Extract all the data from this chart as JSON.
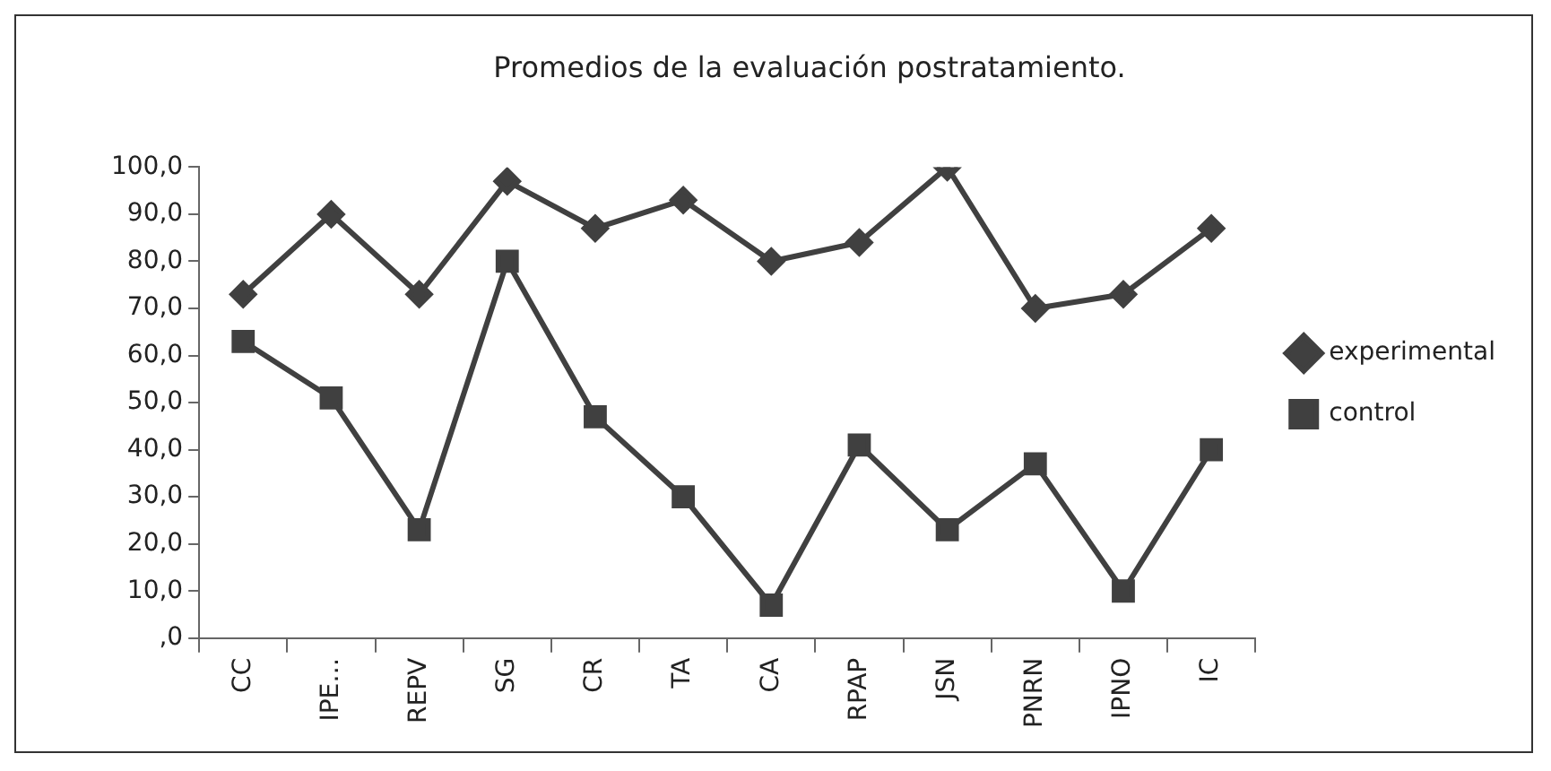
{
  "chart_data": {
    "type": "line",
    "title": "Promedios de la evaluación postratamiento.",
    "categories": [
      "CC",
      "IPE…",
      "REPV",
      "SG",
      "CR",
      "TA",
      "CA",
      "RPAP",
      "JSN",
      "PNRN",
      "IPNO",
      "IC"
    ],
    "series": [
      {
        "name": "experimental",
        "color": "#404040",
        "marker": "diamond",
        "values": [
          73,
          90,
          73,
          97,
          87,
          93,
          80,
          84,
          100,
          70,
          73,
          87
        ]
      },
      {
        "name": "control",
        "color": "#404040",
        "marker": "square",
        "values": [
          63,
          51,
          23,
          80,
          47,
          30,
          7,
          41,
          23,
          37,
          10,
          40
        ]
      }
    ],
    "ylim": [
      0,
      100
    ],
    "yticks": [
      {
        "value": 0,
        "label": ",0"
      },
      {
        "value": 10,
        "label": "10,0"
      },
      {
        "value": 20,
        "label": "20,0"
      },
      {
        "value": 30,
        "label": "30,0"
      },
      {
        "value": 40,
        "label": "40,0"
      },
      {
        "value": 50,
        "label": "50,0"
      },
      {
        "value": 60,
        "label": "60,0"
      },
      {
        "value": 70,
        "label": "70,0"
      },
      {
        "value": 80,
        "label": "80,0"
      },
      {
        "value": 90,
        "label": "90,0"
      },
      {
        "value": 100,
        "label": "100,0"
      }
    ],
    "grid": false,
    "legend": "right"
  }
}
